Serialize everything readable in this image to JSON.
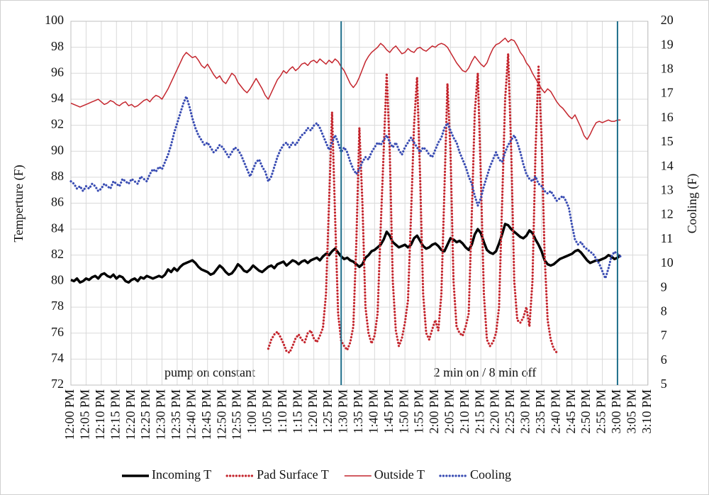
{
  "chart_data": {
    "type": "line",
    "ylabel": "Temperture (F)",
    "y2label": "Cooling (F)",
    "ylim": [
      72,
      100
    ],
    "yticks": [
      72,
      74,
      76,
      78,
      80,
      82,
      84,
      86,
      88,
      90,
      92,
      94,
      96,
      98,
      100
    ],
    "y2lim": [
      5,
      20
    ],
    "y2ticks": [
      5,
      6,
      7,
      8,
      9,
      10,
      11,
      12,
      13,
      14,
      15,
      16,
      17,
      18,
      19,
      20
    ],
    "grid": true,
    "legend": "bottom",
    "annotations": [
      "pump on constant",
      "2 min on / 8 min off"
    ],
    "vlines": [
      89,
      180
    ],
    "vline_color": "#1f6f8b",
    "categories": [
      "12:00 PM",
      null,
      null,
      null,
      null,
      "12:05 PM",
      null,
      null,
      null,
      null,
      "12:10 PM",
      null,
      null,
      null,
      null,
      "12:15 PM",
      null,
      null,
      null,
      null,
      "12:20 PM",
      null,
      null,
      null,
      null,
      "12:25 PM",
      null,
      null,
      null,
      null,
      "12:30 PM",
      null,
      null,
      null,
      null,
      "12:35 PM",
      null,
      null,
      null,
      null,
      "12:40 PM",
      null,
      null,
      null,
      null,
      "12:45 PM",
      null,
      null,
      null,
      null,
      "12:50 PM",
      null,
      null,
      null,
      null,
      "12:55 PM",
      null,
      null,
      null,
      null,
      "1:00 PM",
      null,
      null,
      null,
      null,
      "1:05 PM",
      null,
      null,
      null,
      null,
      "1:10 PM",
      null,
      null,
      null,
      null,
      "1:15 PM",
      null,
      null,
      null,
      null,
      "1:20 PM",
      null,
      null,
      null,
      null,
      "1:25 PM",
      null,
      null,
      null,
      null,
      "1:30 PM",
      null,
      null,
      null,
      null,
      "1:35 PM",
      null,
      null,
      null,
      null,
      "1:40 PM",
      null,
      null,
      null,
      null,
      "1:45 PM",
      null,
      null,
      null,
      null,
      "1:50 PM",
      null,
      null,
      null,
      null,
      "1:55 PM",
      null,
      null,
      null,
      null,
      "2:00 PM",
      null,
      null,
      null,
      null,
      "2:05 PM",
      null,
      null,
      null,
      null,
      "2:10 PM",
      null,
      null,
      null,
      null,
      "2:15 PM",
      null,
      null,
      null,
      null,
      "2:20 PM",
      null,
      null,
      null,
      null,
      "2:25 PM",
      null,
      null,
      null,
      null,
      "2:30 PM",
      null,
      null,
      null,
      null,
      "2:35 PM",
      null,
      null,
      null,
      null,
      "2:40 PM",
      null,
      null,
      null,
      null,
      "2:45 PM",
      null,
      null,
      null,
      null,
      "2:50 PM",
      null,
      null,
      null,
      null,
      "2:55 PM",
      null,
      null,
      null,
      null,
      "3:00 PM",
      null,
      null,
      null,
      null,
      "3:05 PM",
      null,
      null,
      null,
      null,
      "3:10 PM"
    ],
    "series": [
      {
        "name": "Incoming T",
        "color": "#000000",
        "style": "thick",
        "values": [
          80.1,
          80.0,
          80.2,
          79.9,
          80.0,
          80.2,
          80.1,
          80.3,
          80.4,
          80.2,
          80.5,
          80.6,
          80.4,
          80.3,
          80.5,
          80.2,
          80.4,
          80.3,
          80.0,
          79.9,
          80.1,
          80.2,
          80.0,
          80.3,
          80.2,
          80.4,
          80.3,
          80.2,
          80.3,
          80.4,
          80.3,
          80.5,
          80.9,
          80.7,
          81.0,
          80.8,
          81.1,
          81.3,
          81.4,
          81.5,
          81.6,
          81.4,
          81.1,
          80.9,
          80.8,
          80.7,
          80.5,
          80.6,
          80.9,
          81.2,
          81.0,
          80.7,
          80.5,
          80.6,
          80.9,
          81.3,
          81.1,
          80.8,
          80.7,
          80.9,
          81.2,
          81.0,
          80.8,
          80.7,
          80.9,
          81.1,
          81.2,
          81.0,
          81.3,
          81.4,
          81.5,
          81.2,
          81.4,
          81.6,
          81.5,
          81.3,
          81.5,
          81.6,
          81.4,
          81.6,
          81.7,
          81.8,
          81.6,
          81.9,
          82.1,
          82.0,
          82.3,
          82.5,
          82.2,
          81.9,
          81.7,
          81.8,
          81.6,
          81.5,
          81.3,
          81.1,
          81.3,
          81.8,
          82.0,
          82.3,
          82.4,
          82.6,
          82.8,
          83.2,
          83.8,
          83.5,
          83.0,
          82.8,
          82.6,
          82.7,
          82.8,
          82.6,
          82.8,
          83.3,
          83.5,
          83.1,
          82.7,
          82.5,
          82.6,
          82.8,
          82.9,
          82.7,
          82.4,
          82.3,
          82.8,
          83.3,
          83.2,
          83.0,
          83.1,
          82.9,
          82.6,
          82.4,
          82.8,
          83.6,
          84.0,
          83.7,
          83.0,
          82.4,
          82.2,
          82.1,
          82.3,
          82.9,
          83.6,
          84.4,
          84.3,
          84.0,
          83.8,
          83.6,
          83.4,
          83.3,
          83.5,
          83.9,
          83.7,
          83.2,
          82.8,
          82.3,
          81.6,
          81.3,
          81.2,
          81.3,
          81.5,
          81.7,
          81.8,
          81.9,
          82.0,
          82.1,
          82.3,
          82.4,
          82.2,
          81.9,
          81.6,
          81.4,
          81.5,
          81.6,
          81.6,
          81.7,
          81.8,
          82.0,
          81.9,
          81.7,
          81.8,
          82.0,
          null,
          null,
          null,
          null,
          null,
          null,
          null,
          null,
          null
        ]
      },
      {
        "name": "Pad Surface T",
        "color": "#c4262e",
        "style": "dotted",
        "values": [
          null,
          null,
          null,
          null,
          null,
          null,
          null,
          null,
          null,
          null,
          null,
          null,
          null,
          null,
          null,
          null,
          null,
          null,
          null,
          null,
          null,
          null,
          null,
          null,
          null,
          null,
          null,
          null,
          null,
          null,
          null,
          null,
          null,
          null,
          null,
          null,
          null,
          null,
          null,
          null,
          null,
          null,
          null,
          null,
          null,
          null,
          null,
          null,
          null,
          null,
          null,
          null,
          null,
          null,
          null,
          null,
          null,
          null,
          null,
          null,
          null,
          null,
          null,
          null,
          null,
          74.8,
          75.5,
          75.9,
          76.1,
          75.7,
          75.2,
          74.6,
          74.5,
          75.0,
          75.6,
          75.9,
          75.5,
          75.3,
          76.0,
          76.2,
          75.6,
          75.3,
          75.8,
          76.4,
          79.0,
          86.0,
          93.0,
          85.0,
          77.5,
          75.4,
          75.0,
          74.7,
          75.3,
          76.5,
          83.0,
          91.8,
          86.0,
          78.0,
          76.0,
          75.2,
          75.8,
          77.5,
          84.0,
          90.0,
          96.0,
          90.0,
          80.0,
          76.2,
          75.0,
          75.6,
          76.8,
          78.5,
          85.0,
          92.0,
          95.7,
          88.0,
          79.0,
          76.0,
          75.5,
          76.3,
          77.0,
          76.2,
          79.0,
          87.0,
          95.2,
          90.0,
          80.0,
          76.5,
          76.0,
          75.8,
          76.5,
          77.5,
          85.0,
          93.0,
          96.0,
          88.0,
          79.0,
          75.5,
          75.0,
          75.3,
          76.0,
          78.0,
          86.0,
          94.0,
          97.5,
          90.0,
          80.0,
          77.0,
          76.8,
          77.2,
          78.0,
          76.5,
          80.0,
          90.0,
          96.5,
          91.0,
          82.0,
          77.0,
          75.5,
          74.8,
          74.5,
          null,
          null,
          null,
          null,
          null,
          null,
          null,
          null,
          null,
          null,
          null,
          null,
          null,
          null,
          null,
          null,
          null,
          null,
          null,
          null,
          null,
          null,
          null,
          null,
          null,
          null,
          null,
          null,
          null,
          null
        ]
      },
      {
        "name": "Outside T",
        "color": "#c4262e",
        "style": "solid",
        "values": [
          93.7,
          93.6,
          93.5,
          93.4,
          93.5,
          93.6,
          93.7,
          93.8,
          93.9,
          94.0,
          93.8,
          93.6,
          93.7,
          93.9,
          93.8,
          93.6,
          93.5,
          93.7,
          93.8,
          93.5,
          93.6,
          93.4,
          93.5,
          93.7,
          93.9,
          94.0,
          93.8,
          94.1,
          94.3,
          94.2,
          94.0,
          94.4,
          94.8,
          95.3,
          95.8,
          96.3,
          96.8,
          97.3,
          97.6,
          97.4,
          97.2,
          97.3,
          97.0,
          96.6,
          96.4,
          96.7,
          96.3,
          95.9,
          95.6,
          95.8,
          95.4,
          95.2,
          95.6,
          96.0,
          95.8,
          95.3,
          95.0,
          94.7,
          94.5,
          94.8,
          95.2,
          95.6,
          95.2,
          94.8,
          94.3,
          94.0,
          94.5,
          95.0,
          95.5,
          95.8,
          96.2,
          96.0,
          96.3,
          96.5,
          96.2,
          96.4,
          96.7,
          96.8,
          96.6,
          96.9,
          97.0,
          96.8,
          97.1,
          96.9,
          96.7,
          97.0,
          96.8,
          97.1,
          96.9,
          96.5,
          96.2,
          95.7,
          95.2,
          94.9,
          95.2,
          95.7,
          96.3,
          96.9,
          97.3,
          97.6,
          97.8,
          98.0,
          98.3,
          98.1,
          97.8,
          97.6,
          97.9,
          98.1,
          97.8,
          97.5,
          97.6,
          97.9,
          97.7,
          97.6,
          97.9,
          98.0,
          97.8,
          97.7,
          97.9,
          98.1,
          98.0,
          98.2,
          98.3,
          98.2,
          98.0,
          97.6,
          97.2,
          96.8,
          96.5,
          96.2,
          96.1,
          96.4,
          96.9,
          97.3,
          97.0,
          96.7,
          96.5,
          96.8,
          97.4,
          97.9,
          98.2,
          98.3,
          98.5,
          98.7,
          98.4,
          98.6,
          98.5,
          98.1,
          97.6,
          97.3,
          96.8,
          96.5,
          96.0,
          95.6,
          95.2,
          94.8,
          94.5,
          94.8,
          94.6,
          94.2,
          93.8,
          93.5,
          93.3,
          93.0,
          92.7,
          92.5,
          92.8,
          92.3,
          91.8,
          91.2,
          90.9,
          91.3,
          91.8,
          92.2,
          92.3,
          92.2,
          92.3,
          92.4,
          92.3,
          92.3,
          92.4,
          92.4,
          null,
          null,
          null,
          null,
          null,
          null,
          null,
          null,
          null
        ]
      },
      {
        "name": "Cooling",
        "color": "#3a4db3",
        "style": "dotted",
        "axis": "y2",
        "values": [
          13.4,
          13.3,
          13.1,
          13.2,
          13.0,
          13.2,
          13.1,
          13.3,
          13.2,
          13.0,
          13.1,
          13.3,
          13.2,
          13.1,
          13.4,
          13.3,
          13.2,
          13.5,
          13.4,
          13.3,
          13.5,
          13.4,
          13.3,
          13.6,
          13.5,
          13.4,
          13.7,
          13.9,
          13.8,
          14.0,
          13.9,
          14.2,
          14.5,
          14.9,
          15.4,
          15.8,
          16.2,
          16.6,
          16.9,
          16.5,
          16.0,
          15.6,
          15.3,
          15.1,
          14.9,
          15.0,
          14.8,
          14.6,
          14.7,
          14.9,
          14.8,
          14.6,
          14.4,
          14.6,
          14.8,
          14.7,
          14.5,
          14.2,
          13.9,
          13.6,
          13.9,
          14.2,
          14.3,
          14.0,
          13.8,
          13.4,
          13.6,
          14.0,
          14.4,
          14.7,
          14.9,
          15.0,
          14.8,
          15.0,
          14.9,
          15.1,
          15.3,
          15.4,
          15.6,
          15.5,
          15.7,
          15.8,
          15.6,
          15.3,
          15.0,
          14.7,
          15.0,
          15.3,
          15.0,
          14.6,
          14.8,
          14.6,
          14.2,
          13.9,
          13.7,
          13.9,
          14.2,
          14.4,
          14.3,
          14.6,
          14.8,
          15.0,
          14.9,
          15.1,
          15.3,
          15.0,
          14.8,
          15.0,
          14.7,
          14.5,
          14.8,
          15.0,
          15.2,
          15.0,
          14.8,
          14.6,
          14.8,
          14.7,
          14.5,
          14.4,
          14.7,
          15.0,
          15.2,
          15.6,
          15.8,
          15.5,
          15.2,
          15.0,
          14.6,
          14.3,
          14.0,
          13.6,
          13.3,
          12.8,
          12.4,
          12.7,
          13.2,
          13.6,
          14.0,
          14.3,
          14.6,
          14.3,
          14.2,
          14.6,
          14.9,
          15.1,
          15.3,
          15.0,
          14.6,
          14.1,
          13.7,
          13.5,
          13.4,
          13.6,
          13.3,
          13.2,
          13.0,
          12.9,
          13.0,
          12.8,
          12.6,
          12.7,
          12.8,
          12.6,
          12.3,
          11.6,
          11.0,
          10.8,
          10.9,
          10.7,
          10.6,
          10.5,
          10.4,
          10.2,
          10.0,
          9.7,
          9.4,
          9.8,
          10.3,
          10.5,
          10.4,
          10.3,
          null,
          null,
          null,
          null,
          null,
          null,
          null,
          null,
          null
        ]
      }
    ]
  }
}
